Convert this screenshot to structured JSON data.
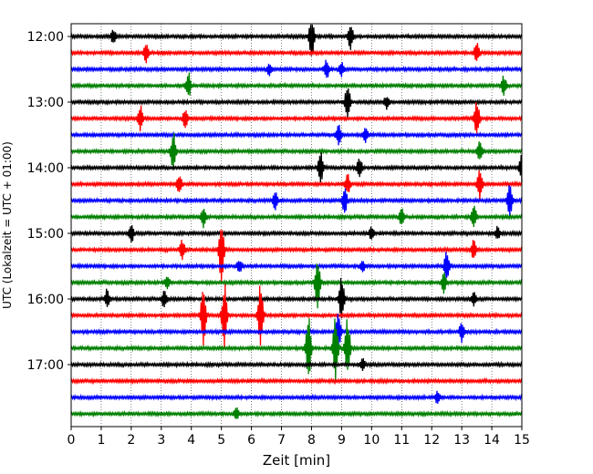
{
  "chart_data": {
    "type": "line",
    "subtype": "helicorder",
    "xlabel": "Zeit  [min]",
    "ylabel": "UTC (Lokalzeit = UTC + 01:00)",
    "xlim": [
      0,
      15
    ],
    "x_ticks": [
      "0",
      "1",
      "2",
      "3",
      "4",
      "5",
      "6",
      "7",
      "8",
      "9",
      "10",
      "11",
      "12",
      "13",
      "14",
      "15"
    ],
    "y_tick_labels": [
      "12:00",
      "13:00",
      "14:00",
      "15:00",
      "16:00",
      "17:00"
    ],
    "grid": "vertical dotted at each minute",
    "trace_interval_min": 15,
    "start_time": "12:00",
    "colors": [
      "#000000",
      "#ff0000",
      "#0000ff",
      "#008000"
    ],
    "traces": [
      {
        "time": "12:00",
        "color": "#000000",
        "events": [
          [
            1.4,
            0.2
          ],
          [
            8.0,
            0.7
          ],
          [
            9.3,
            0.4
          ]
        ]
      },
      {
        "time": "12:15",
        "color": "#ff0000",
        "events": [
          [
            2.5,
            0.3
          ],
          [
            13.5,
            0.3
          ]
        ]
      },
      {
        "time": "12:30",
        "color": "#0000ff",
        "events": [
          [
            6.6,
            0.2
          ],
          [
            8.5,
            0.3
          ],
          [
            9.0,
            0.2
          ]
        ]
      },
      {
        "time": "12:45",
        "color": "#008000",
        "events": [
          [
            3.9,
            0.4
          ],
          [
            14.4,
            0.3
          ]
        ]
      },
      {
        "time": "13:00",
        "color": "#000000",
        "events": [
          [
            9.2,
            0.6
          ],
          [
            10.5,
            0.2
          ]
        ]
      },
      {
        "time": "13:15",
        "color": "#ff0000",
        "events": [
          [
            2.3,
            0.4
          ],
          [
            3.8,
            0.3
          ],
          [
            13.5,
            0.6
          ]
        ]
      },
      {
        "time": "13:30",
        "color": "#0000ff",
        "events": [
          [
            8.9,
            0.3
          ],
          [
            9.8,
            0.2
          ]
        ]
      },
      {
        "time": "13:45",
        "color": "#008000",
        "events": [
          [
            3.4,
            0.6
          ],
          [
            13.6,
            0.3
          ]
        ]
      },
      {
        "time": "14:00",
        "color": "#000000",
        "events": [
          [
            8.3,
            0.5
          ],
          [
            9.6,
            0.3
          ],
          [
            15.0,
            0.4
          ]
        ]
      },
      {
        "time": "14:15",
        "color": "#ff0000",
        "events": [
          [
            3.6,
            0.3
          ],
          [
            9.2,
            0.3
          ],
          [
            13.6,
            0.5
          ]
        ]
      },
      {
        "time": "14:30",
        "color": "#0000ff",
        "events": [
          [
            6.8,
            0.3
          ],
          [
            9.1,
            0.4
          ],
          [
            14.6,
            0.6
          ]
        ]
      },
      {
        "time": "14:45",
        "color": "#008000",
        "events": [
          [
            4.4,
            0.3
          ],
          [
            11.0,
            0.3
          ],
          [
            13.4,
            0.4
          ]
        ]
      },
      {
        "time": "15:00",
        "color": "#000000",
        "events": [
          [
            2.0,
            0.3
          ],
          [
            10.0,
            0.2
          ],
          [
            14.2,
            0.2
          ]
        ]
      },
      {
        "time": "15:15",
        "color": "#ff0000",
        "events": [
          [
            3.7,
            0.3
          ],
          [
            5.0,
            1.0
          ],
          [
            13.4,
            0.3
          ]
        ]
      },
      {
        "time": "15:30",
        "color": "#0000ff",
        "events": [
          [
            5.6,
            0.2
          ],
          [
            9.7,
            0.2
          ],
          [
            12.5,
            0.5
          ]
        ]
      },
      {
        "time": "15:45",
        "color": "#008000",
        "events": [
          [
            3.2,
            0.2
          ],
          [
            8.2,
            0.8
          ],
          [
            12.4,
            0.3
          ]
        ]
      },
      {
        "time": "16:00",
        "color": "#000000",
        "events": [
          [
            1.2,
            0.3
          ],
          [
            3.1,
            0.3
          ],
          [
            9.0,
            0.7
          ],
          [
            13.4,
            0.2
          ]
        ]
      },
      {
        "time": "16:15",
        "color": "#ff0000",
        "events": [
          [
            4.4,
            0.9
          ],
          [
            5.1,
            1.0
          ],
          [
            6.3,
            1.0
          ]
        ]
      },
      {
        "time": "16:30",
        "color": "#0000ff",
        "events": [
          [
            8.9,
            0.6
          ],
          [
            13.0,
            0.3
          ]
        ]
      },
      {
        "time": "16:45",
        "color": "#008000",
        "events": [
          [
            7.9,
            1.0
          ],
          [
            8.8,
            1.0
          ],
          [
            9.2,
            1.0
          ]
        ]
      },
      {
        "time": "17:00",
        "color": "#000000",
        "events": [
          [
            9.7,
            0.2
          ]
        ]
      },
      {
        "time": "17:15",
        "color": "#ff0000",
        "events": []
      },
      {
        "time": "17:30",
        "color": "#0000ff",
        "events": [
          [
            12.2,
            0.2
          ]
        ]
      },
      {
        "time": "17:45",
        "color": "#008000",
        "events": [
          [
            5.5,
            0.2
          ]
        ]
      }
    ]
  }
}
